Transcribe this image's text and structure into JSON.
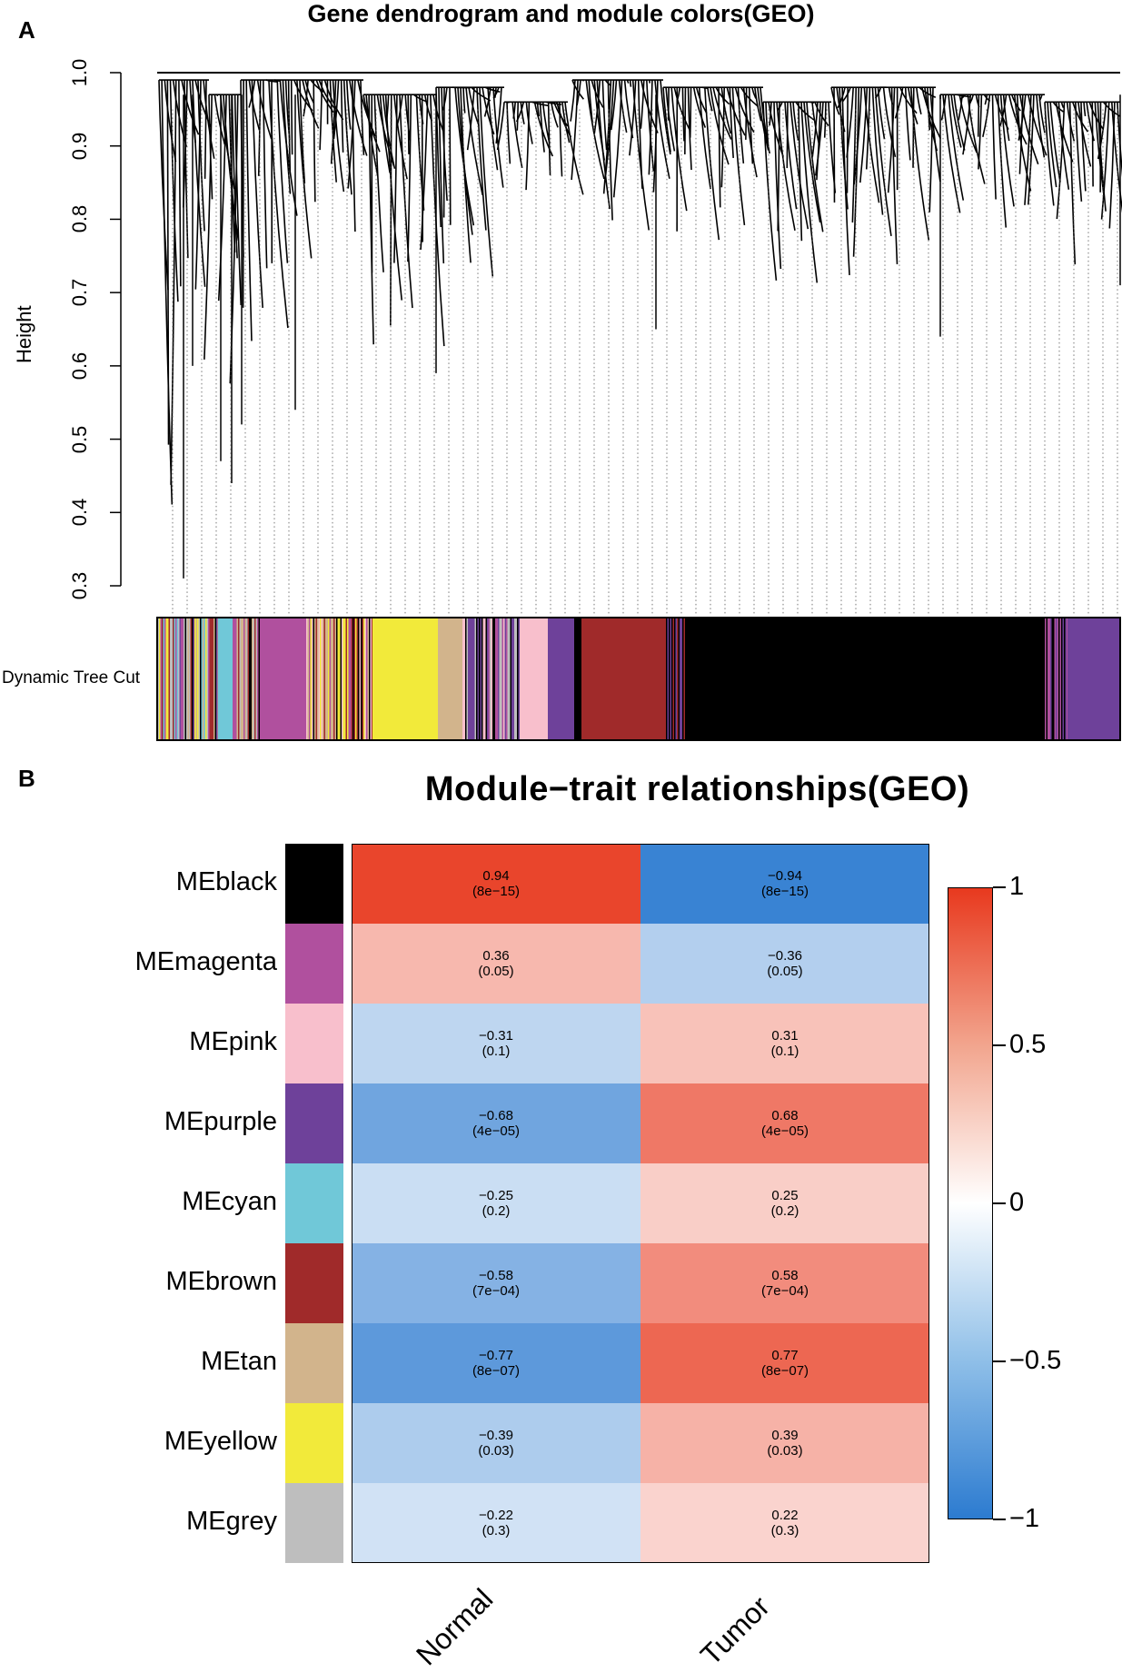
{
  "panel_a": {
    "label": "A",
    "title": "Gene dendrogram and module colors(GEO)",
    "ylabel": "Height",
    "yticks": [
      "1.0",
      "0.9",
      "0.8",
      "0.7",
      "0.6",
      "0.5",
      "0.4",
      "0.3"
    ],
    "color_bar_label": "Dynamic Tree Cut"
  },
  "panel_b": {
    "label": "B",
    "title": "Module−trait relationships(GEO)"
  },
  "chart_data": [
    {
      "type": "dendrogram",
      "title": "Gene dendrogram and module colors(GEO)",
      "ylabel": "Height",
      "ylim": [
        0.3,
        1.0
      ],
      "color_bar_label": "Dynamic Tree Cut",
      "module_colors": [
        "grey",
        "cyan",
        "magenta",
        "yellow",
        "tan",
        "purple",
        "pink",
        "brown",
        "black"
      ]
    },
    {
      "type": "heatmap",
      "title": "Module−trait relationships(GEO)",
      "columns": [
        "Normal",
        "Tumor"
      ],
      "rows": [
        {
          "module": "MEblack",
          "color": "#000000",
          "cor": [
            0.94,
            -0.94
          ],
          "p": [
            "(8e−15)",
            "(8e−15)"
          ],
          "cor_label": [
            "0.94",
            "−0.94"
          ]
        },
        {
          "module": "MEmagenta",
          "color": "#b0509e",
          "cor": [
            0.36,
            -0.36
          ],
          "p": [
            "(0.05)",
            "(0.05)"
          ],
          "cor_label": [
            "0.36",
            "−0.36"
          ]
        },
        {
          "module": "MEpink",
          "color": "#f8bfcc",
          "cor": [
            -0.31,
            0.31
          ],
          "p": [
            "(0.1)",
            "(0.1)"
          ],
          "cor_label": [
            "−0.31",
            "0.31"
          ]
        },
        {
          "module": "MEpurple",
          "color": "#6e419a",
          "cor": [
            -0.68,
            0.68
          ],
          "p": [
            "(4e−05)",
            "(4e−05)"
          ],
          "cor_label": [
            "−0.68",
            "0.68"
          ]
        },
        {
          "module": "MEcyan",
          "color": "#70c8d8",
          "cor": [
            -0.25,
            0.25
          ],
          "p": [
            "(0.2)",
            "(0.2)"
          ],
          "cor_label": [
            "−0.25",
            "0.25"
          ]
        },
        {
          "module": "MEbrown",
          "color": "#a02a2a",
          "cor": [
            -0.58,
            0.58
          ],
          "p": [
            "(7e−04)",
            "(7e−04)"
          ],
          "cor_label": [
            "−0.58",
            "0.58"
          ]
        },
        {
          "module": "MEtan",
          "color": "#d2b48c",
          "cor": [
            -0.77,
            0.77
          ],
          "p": [
            "(8e−07)",
            "(8e−07)"
          ],
          "cor_label": [
            "−0.77",
            "0.77"
          ]
        },
        {
          "module": "MEyellow",
          "color": "#f2ea3a",
          "cor": [
            -0.39,
            0.39
          ],
          "p": [
            "(0.03)",
            "(0.03)"
          ],
          "cor_label": [
            "−0.39",
            "0.39"
          ]
        },
        {
          "module": "MEgrey",
          "color": "#bebebe",
          "cor": [
            -0.22,
            0.22
          ],
          "p": [
            "(0.3)",
            "(0.3)"
          ],
          "cor_label": [
            "−0.22",
            "0.22"
          ]
        }
      ],
      "colorbar": {
        "range": [
          -1,
          1
        ],
        "ticks": [
          "1",
          "0.5",
          "0",
          "−0.5",
          "−1"
        ],
        "tick_values": [
          1,
          0.5,
          0,
          -0.5,
          -1
        ]
      }
    }
  ]
}
